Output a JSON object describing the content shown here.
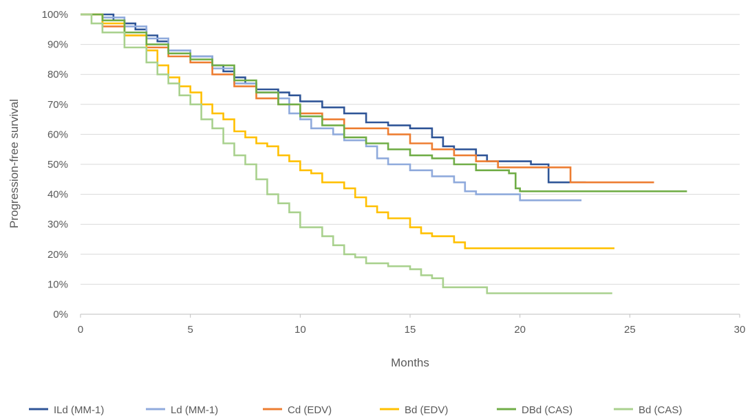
{
  "chart_data": {
    "type": "line",
    "xlabel": "Months",
    "ylabel": "Progression-free survival",
    "xlim": [
      0,
      30
    ],
    "ylim": [
      0,
      100
    ],
    "x_ticks": [
      "0",
      "5",
      "10",
      "15",
      "20",
      "25",
      "30"
    ],
    "y_ticks": [
      "0%",
      "10%",
      "20%",
      "30%",
      "40%",
      "50%",
      "60%",
      "70%",
      "80%",
      "90%",
      "100%"
    ],
    "grid": "horizontal",
    "legend_position": "bottom",
    "series": [
      {
        "name": "ILd (MM-1)",
        "color": "#2F5597",
        "points": [
          [
            0,
            100
          ],
          [
            1,
            100
          ],
          [
            1.5,
            98
          ],
          [
            2,
            97
          ],
          [
            2.5,
            95
          ],
          [
            3,
            93
          ],
          [
            3.5,
            91
          ],
          [
            4,
            88
          ],
          [
            5,
            86
          ],
          [
            6,
            83
          ],
          [
            6.5,
            81
          ],
          [
            7,
            79
          ],
          [
            7.5,
            77
          ],
          [
            8,
            75
          ],
          [
            9,
            74
          ],
          [
            9.5,
            73
          ],
          [
            10,
            71
          ],
          [
            11,
            69
          ],
          [
            12,
            67
          ],
          [
            13,
            64
          ],
          [
            14,
            63
          ],
          [
            15,
            62
          ],
          [
            16,
            59
          ],
          [
            16.5,
            56
          ],
          [
            17,
            55
          ],
          [
            18,
            53
          ],
          [
            18.5,
            51
          ],
          [
            20,
            51
          ],
          [
            20.5,
            50
          ],
          [
            21,
            50
          ],
          [
            21.3,
            44
          ],
          [
            23,
            44
          ]
        ]
      },
      {
        "name": "Ld (MM-1)",
        "color": "#8FAADC",
        "points": [
          [
            0,
            100
          ],
          [
            1,
            99
          ],
          [
            2,
            96
          ],
          [
            3,
            92
          ],
          [
            4,
            88
          ],
          [
            5,
            86
          ],
          [
            6,
            82
          ],
          [
            7,
            77
          ],
          [
            8,
            74
          ],
          [
            9,
            72
          ],
          [
            9.5,
            67
          ],
          [
            10,
            65
          ],
          [
            10.5,
            62
          ],
          [
            11.5,
            60
          ],
          [
            12,
            58
          ],
          [
            13,
            56
          ],
          [
            13.5,
            52
          ],
          [
            14,
            50
          ],
          [
            15,
            48
          ],
          [
            16,
            46
          ],
          [
            17,
            44
          ],
          [
            17.5,
            41
          ],
          [
            18,
            40
          ],
          [
            19,
            40
          ],
          [
            20,
            38
          ],
          [
            21,
            38
          ],
          [
            22.8,
            38
          ]
        ]
      },
      {
        "name": "Cd (EDV)",
        "color": "#ED7D31",
        "points": [
          [
            0,
            100
          ],
          [
            1,
            96
          ],
          [
            2,
            93
          ],
          [
            3,
            89
          ],
          [
            4,
            86
          ],
          [
            5,
            84
          ],
          [
            6,
            80
          ],
          [
            7,
            76
          ],
          [
            8,
            72
          ],
          [
            9,
            70
          ],
          [
            10,
            67
          ],
          [
            11,
            65
          ],
          [
            12,
            62
          ],
          [
            13,
            62
          ],
          [
            14,
            60
          ],
          [
            15,
            57
          ],
          [
            16,
            55
          ],
          [
            17,
            53
          ],
          [
            18,
            51
          ],
          [
            19,
            49
          ],
          [
            20,
            49
          ],
          [
            21,
            49
          ],
          [
            22,
            49
          ],
          [
            22.3,
            44
          ],
          [
            24,
            44
          ],
          [
            26.1,
            44
          ]
        ]
      },
      {
        "name": "Bd (EDV)",
        "color": "#FFC000",
        "points": [
          [
            0,
            100
          ],
          [
            1,
            97
          ],
          [
            2,
            93
          ],
          [
            3,
            88
          ],
          [
            3.5,
            83
          ],
          [
            4,
            79
          ],
          [
            4.5,
            76
          ],
          [
            5,
            74
          ],
          [
            5.5,
            70
          ],
          [
            6,
            67
          ],
          [
            6.5,
            65
          ],
          [
            7,
            61
          ],
          [
            7.5,
            59
          ],
          [
            8,
            57
          ],
          [
            8.5,
            56
          ],
          [
            9,
            53
          ],
          [
            9.5,
            51
          ],
          [
            10,
            48
          ],
          [
            10.5,
            47
          ],
          [
            11,
            44
          ],
          [
            12,
            42
          ],
          [
            12.5,
            39
          ],
          [
            13,
            36
          ],
          [
            13.5,
            34
          ],
          [
            14,
            32
          ],
          [
            15,
            29
          ],
          [
            15.5,
            27
          ],
          [
            16,
            26
          ],
          [
            17,
            24
          ],
          [
            17.5,
            22
          ],
          [
            19,
            22
          ],
          [
            20,
            22
          ],
          [
            24.3,
            22
          ]
        ]
      },
      {
        "name": "DBd (CAS)",
        "color": "#70AD47",
        "points": [
          [
            0,
            100
          ],
          [
            1,
            98
          ],
          [
            2,
            94
          ],
          [
            3,
            90
          ],
          [
            4,
            87
          ],
          [
            5,
            85
          ],
          [
            6,
            83
          ],
          [
            7,
            78
          ],
          [
            8,
            74
          ],
          [
            9,
            70
          ],
          [
            10,
            66
          ],
          [
            11,
            63
          ],
          [
            12,
            59
          ],
          [
            13,
            57
          ],
          [
            14,
            55
          ],
          [
            15,
            53
          ],
          [
            16,
            52
          ],
          [
            17,
            50
          ],
          [
            18,
            48
          ],
          [
            19,
            48
          ],
          [
            19.5,
            47
          ],
          [
            19.8,
            42
          ],
          [
            20,
            41
          ],
          [
            21,
            41
          ],
          [
            25,
            41
          ],
          [
            27.6,
            41
          ]
        ]
      },
      {
        "name": "Bd (CAS)",
        "color": "#A9D18E",
        "points": [
          [
            0,
            100
          ],
          [
            0.5,
            97
          ],
          [
            1,
            94
          ],
          [
            2,
            89
          ],
          [
            3,
            84
          ],
          [
            3.5,
            80
          ],
          [
            4,
            77
          ],
          [
            4.5,
            73
          ],
          [
            5,
            70
          ],
          [
            5.5,
            65
          ],
          [
            6,
            62
          ],
          [
            6.5,
            57
          ],
          [
            7,
            53
          ],
          [
            7.5,
            50
          ],
          [
            8,
            45
          ],
          [
            8.5,
            40
          ],
          [
            9,
            37
          ],
          [
            9.5,
            34
          ],
          [
            10,
            29
          ],
          [
            11,
            26
          ],
          [
            11.5,
            23
          ],
          [
            12,
            20
          ],
          [
            12.5,
            19
          ],
          [
            13,
            17
          ],
          [
            14,
            16
          ],
          [
            15,
            15
          ],
          [
            15.5,
            13
          ],
          [
            16,
            12
          ],
          [
            16.5,
            9
          ],
          [
            17,
            9
          ],
          [
            18,
            9
          ],
          [
            18.5,
            7
          ],
          [
            19,
            7
          ],
          [
            24.2,
            7
          ]
        ]
      }
    ]
  }
}
